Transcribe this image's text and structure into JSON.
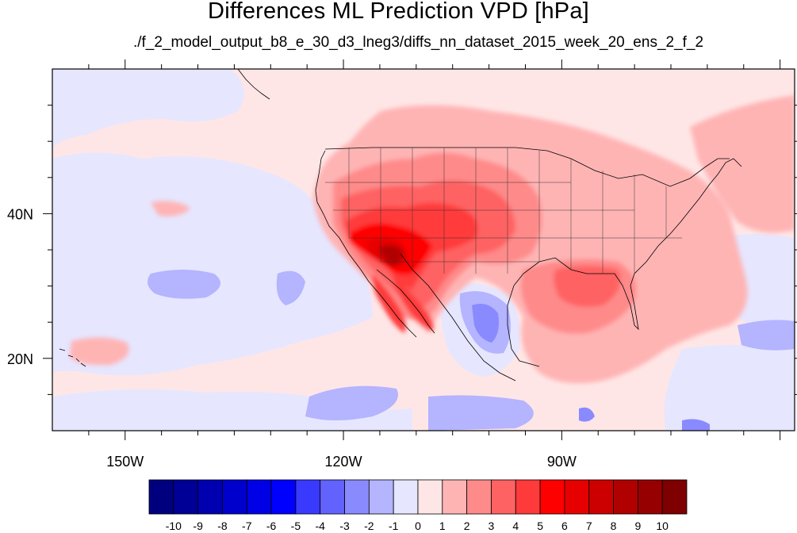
{
  "title": "Differences ML Prediction VPD [hPa]",
  "subtitle": "./f_2_model_output_b8_e_30_d3_lneg3/diffs_nn_dataset_2015_week_20_ens_2_f_2",
  "map": {
    "lon_range": [
      -160,
      -58
    ],
    "lat_range": [
      10,
      60
    ],
    "lon_ticks": [
      {
        "value": -150,
        "label": "150W"
      },
      {
        "value": -120,
        "label": "120W"
      },
      {
        "value": -90,
        "label": "90W"
      }
    ],
    "lat_ticks": [
      {
        "value": 40,
        "label": "40N"
      },
      {
        "value": 20,
        "label": "20N"
      }
    ]
  },
  "colorbar": {
    "colors": [
      "#00007f",
      "#000096",
      "#0000b0",
      "#0000cc",
      "#0000e6",
      "#0000ff",
      "#3a3aff",
      "#6262ff",
      "#8a8aff",
      "#b4b4ff",
      "#e6e6ff",
      "#ffe6e6",
      "#ffb4b4",
      "#ff8a8a",
      "#ff6262",
      "#ff3a3a",
      "#ff0000",
      "#e60000",
      "#cc0000",
      "#b00000",
      "#960000",
      "#7f0000"
    ],
    "labels": [
      "-10",
      "-9",
      "-8",
      "-7",
      "-6",
      "-5",
      "-4",
      "-3",
      "-2",
      "-1",
      "0",
      "1",
      "2",
      "3",
      "4",
      "5",
      "6",
      "7",
      "8",
      "9",
      "10"
    ]
  }
}
